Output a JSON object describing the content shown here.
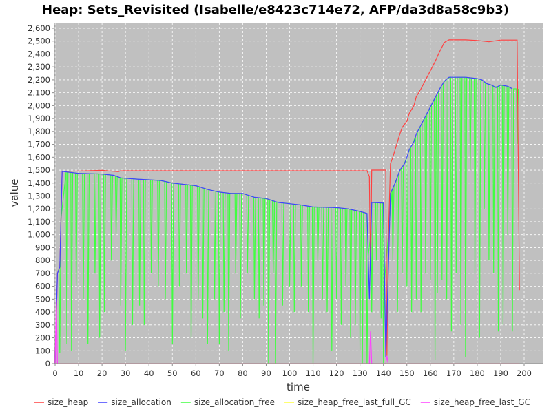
{
  "chart_data": {
    "type": "line",
    "title": "Heap: Sets_Revisited (Isabelle/e8423c714e72, AFP/da3d8a58c9b3)",
    "xlabel": "time",
    "ylabel": "value",
    "xlim": [
      0,
      208
    ],
    "ylim": [
      0,
      2650
    ],
    "xticks": [
      0,
      10,
      20,
      30,
      40,
      50,
      60,
      70,
      80,
      90,
      100,
      110,
      120,
      130,
      140,
      150,
      160,
      170,
      180,
      190,
      200
    ],
    "yticks": [
      0,
      100,
      200,
      300,
      400,
      500,
      600,
      700,
      800,
      900,
      1000,
      1100,
      1200,
      1300,
      1400,
      1500,
      1600,
      1700,
      1800,
      1900,
      2000,
      2100,
      2200,
      2300,
      2400,
      2500,
      2600
    ],
    "ytick_labels": [
      "0",
      "100",
      "200",
      "300",
      "400",
      "500",
      "600",
      "700",
      "800",
      "900",
      "1,000",
      "1,100",
      "1,200",
      "1,300",
      "1,400",
      "1,500",
      "1,600",
      "1,700",
      "1,800",
      "1,900",
      "2,000",
      "2,100",
      "2,200",
      "2,300",
      "2,400",
      "2,500",
      "2,600"
    ],
    "grid": true,
    "background": "#c0c0c0",
    "legend_position": "bottom",
    "series": [
      {
        "name": "size_heap",
        "color": "#ff4040",
        "points": [
          [
            0,
            0
          ],
          [
            1,
            700
          ],
          [
            2,
            750
          ],
          [
            3,
            1490
          ],
          [
            20,
            1498
          ],
          [
            27,
            1488
          ],
          [
            28,
            1495
          ],
          [
            60,
            1495
          ],
          [
            100,
            1495
          ],
          [
            133,
            1495
          ],
          [
            134,
            1450
          ],
          [
            134.5,
            720
          ],
          [
            135,
            1500
          ],
          [
            141,
            1500
          ],
          [
            141.5,
            60
          ],
          [
            142,
            900
          ],
          [
            143,
            1550
          ],
          [
            144,
            1600
          ],
          [
            145,
            1660
          ],
          [
            146,
            1720
          ],
          [
            147,
            1780
          ],
          [
            148,
            1830
          ],
          [
            150,
            1880
          ],
          [
            151,
            1940
          ],
          [
            153,
            2000
          ],
          [
            154,
            2070
          ],
          [
            156,
            2130
          ],
          [
            158,
            2200
          ],
          [
            160,
            2270
          ],
          [
            162,
            2340
          ],
          [
            164,
            2420
          ],
          [
            166,
            2490
          ],
          [
            168,
            2510
          ],
          [
            175,
            2510
          ],
          [
            180,
            2505
          ],
          [
            185,
            2495
          ],
          [
            190,
            2508
          ],
          [
            197,
            2508
          ],
          [
            198,
            570
          ]
        ]
      },
      {
        "name": "size_allocation",
        "color": "#4040ff",
        "points": [
          [
            0,
            0
          ],
          [
            1,
            700
          ],
          [
            2,
            750
          ],
          [
            3,
            1490
          ],
          [
            10,
            1475
          ],
          [
            20,
            1470
          ],
          [
            25,
            1460
          ],
          [
            28,
            1440
          ],
          [
            35,
            1430
          ],
          [
            45,
            1420
          ],
          [
            50,
            1400
          ],
          [
            60,
            1380
          ],
          [
            65,
            1350
          ],
          [
            70,
            1330
          ],
          [
            75,
            1320
          ],
          [
            80,
            1320
          ],
          [
            85,
            1290
          ],
          [
            90,
            1280
          ],
          [
            95,
            1250
          ],
          [
            100,
            1240
          ],
          [
            105,
            1230
          ],
          [
            110,
            1215
          ],
          [
            120,
            1210
          ],
          [
            125,
            1200
          ],
          [
            130,
            1180
          ],
          [
            133,
            1165
          ],
          [
            134,
            500
          ],
          [
            135,
            1250
          ],
          [
            140,
            1245
          ],
          [
            141,
            50
          ],
          [
            142,
            660
          ],
          [
            143,
            1320
          ],
          [
            145,
            1400
          ],
          [
            146,
            1450
          ],
          [
            147,
            1500
          ],
          [
            149,
            1550
          ],
          [
            150,
            1600
          ],
          [
            151,
            1660
          ],
          [
            153,
            1720
          ],
          [
            154,
            1780
          ],
          [
            156,
            1850
          ],
          [
            158,
            1920
          ],
          [
            160,
            1990
          ],
          [
            162,
            2060
          ],
          [
            164,
            2130
          ],
          [
            166,
            2190
          ],
          [
            168,
            2220
          ],
          [
            175,
            2220
          ],
          [
            180,
            2210
          ],
          [
            182,
            2200
          ],
          [
            184,
            2170
          ],
          [
            186,
            2160
          ],
          [
            188,
            2140
          ],
          [
            190,
            2160
          ],
          [
            193,
            2150
          ],
          [
            195,
            2130
          ]
        ]
      },
      {
        "name": "size_allocation_free",
        "color": "#40ff40",
        "dips": [
          [
            2,
            80
          ],
          [
            5,
            150
          ],
          [
            7,
            100
          ],
          [
            9,
            600
          ],
          [
            12,
            500
          ],
          [
            14,
            150
          ],
          [
            17,
            700
          ],
          [
            19,
            200
          ],
          [
            21,
            400
          ],
          [
            24,
            800
          ],
          [
            26,
            1000
          ],
          [
            28,
            450
          ],
          [
            30,
            100
          ],
          [
            33,
            300
          ],
          [
            36,
            450
          ],
          [
            38,
            300
          ],
          [
            41,
            700
          ],
          [
            44,
            600
          ],
          [
            47,
            500
          ],
          [
            50,
            150
          ],
          [
            53,
            600
          ],
          [
            56,
            700
          ],
          [
            58,
            200
          ],
          [
            61,
            500
          ],
          [
            63,
            350
          ],
          [
            65,
            150
          ],
          [
            68,
            500
          ],
          [
            70,
            150
          ],
          [
            72,
            400
          ],
          [
            74,
            100
          ],
          [
            77,
            700
          ],
          [
            79,
            350
          ],
          [
            82,
            700
          ],
          [
            85,
            500
          ],
          [
            87,
            350
          ],
          [
            89,
            450
          ],
          [
            91,
            0
          ],
          [
            93,
            700
          ],
          [
            94,
            0
          ],
          [
            97,
            450
          ],
          [
            100,
            600
          ],
          [
            102,
            400
          ],
          [
            105,
            600
          ],
          [
            108,
            400
          ],
          [
            110,
            0
          ],
          [
            112,
            800
          ],
          [
            114,
            500
          ],
          [
            116,
            400
          ],
          [
            118,
            100
          ],
          [
            120,
            500
          ],
          [
            122,
            300
          ],
          [
            124,
            600
          ],
          [
            126,
            200
          ],
          [
            128,
            300
          ],
          [
            130,
            100
          ],
          [
            131,
            0
          ],
          [
            133,
            0
          ],
          [
            135,
            400
          ],
          [
            137,
            800
          ],
          [
            139,
            350
          ],
          [
            140,
            0
          ],
          [
            144,
            800
          ],
          [
            146,
            400
          ],
          [
            148,
            700
          ],
          [
            150,
            600
          ],
          [
            152,
            400
          ],
          [
            154,
            500
          ],
          [
            156,
            400
          ],
          [
            158,
            700
          ],
          [
            160,
            650
          ],
          [
            162,
            30
          ],
          [
            163,
            550
          ],
          [
            165,
            650
          ],
          [
            167,
            500
          ],
          [
            169,
            250
          ],
          [
            171,
            700
          ],
          [
            173,
            300
          ],
          [
            175,
            50
          ],
          [
            177,
            1500
          ],
          [
            179,
            700
          ],
          [
            181,
            200
          ],
          [
            183,
            1200
          ],
          [
            185,
            800
          ],
          [
            187,
            700
          ],
          [
            189,
            250
          ],
          [
            191,
            300
          ],
          [
            193,
            1000
          ],
          [
            195,
            250
          ],
          [
            197,
            1700
          ]
        ]
      },
      {
        "name": "size_heap_free_last_full_GC",
        "color": "#ffff40",
        "points": [
          [
            0,
            0
          ],
          [
            198,
            0
          ]
        ]
      },
      {
        "name": "size_heap_free_last_GC",
        "color": "#ff40ff",
        "points": [
          [
            0,
            0
          ],
          [
            0.5,
            500
          ],
          [
            1,
            0
          ],
          [
            134,
            0
          ],
          [
            134.5,
            250
          ],
          [
            135,
            0
          ],
          [
            141,
            0
          ],
          [
            141.5,
            60
          ],
          [
            142,
            0
          ],
          [
            198,
            0
          ]
        ]
      }
    ]
  }
}
